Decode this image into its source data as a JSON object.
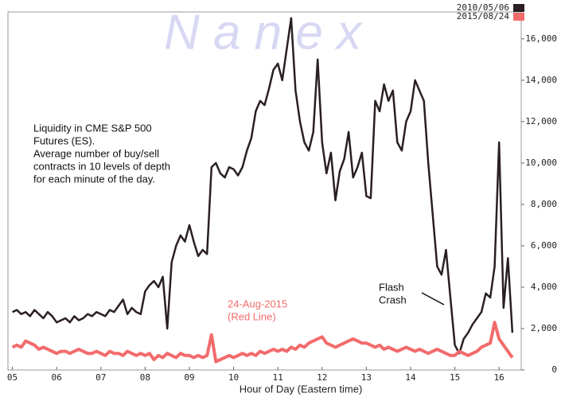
{
  "chart_data": {
    "type": "line",
    "watermark": "N a n e x",
    "annotation_lines": [
      "Liquidity in CME S&P 500",
      "Futures (ES).",
      "Average number of buy/sell",
      "contracts in 10 levels of depth",
      "for each minute of the day."
    ],
    "flash_crash_lines": [
      "Flash",
      "Crash"
    ],
    "red_note_lines": [
      "24-Aug-2015",
      "(Red Line)"
    ],
    "x_label": "Hour of Day (Eastern time)",
    "x": [
      5.0,
      5.1,
      5.2,
      5.3,
      5.4,
      5.5,
      5.6,
      5.7,
      5.8,
      5.9,
      6.0,
      6.1,
      6.2,
      6.3,
      6.4,
      6.5,
      6.6,
      6.7,
      6.8,
      6.9,
      7.0,
      7.1,
      7.2,
      7.3,
      7.4,
      7.5,
      7.6,
      7.7,
      7.8,
      7.9,
      8.0,
      8.1,
      8.2,
      8.3,
      8.4,
      8.5,
      8.6,
      8.7,
      8.8,
      8.9,
      9.0,
      9.1,
      9.2,
      9.3,
      9.4,
      9.5,
      9.6,
      9.7,
      9.8,
      9.9,
      10.0,
      10.1,
      10.2,
      10.3,
      10.4,
      10.5,
      10.6,
      10.7,
      10.8,
      10.9,
      11.0,
      11.1,
      11.2,
      11.3,
      11.4,
      11.5,
      11.6,
      11.7,
      11.8,
      11.9,
      12.0,
      12.1,
      12.2,
      12.3,
      12.4,
      12.5,
      12.6,
      12.7,
      12.8,
      12.9,
      13.0,
      13.1,
      13.2,
      13.3,
      13.4,
      13.5,
      13.6,
      13.7,
      13.8,
      13.9,
      14.0,
      14.1,
      14.2,
      14.3,
      14.4,
      14.5,
      14.6,
      14.7,
      14.8,
      14.9,
      15.0,
      15.1,
      15.2,
      15.3,
      15.4,
      15.5,
      15.6,
      15.7,
      15.8,
      15.9,
      16.0,
      16.1,
      16.2,
      16.3
    ],
    "series": [
      {
        "name": "2010/05/06",
        "color": "#2a1f22",
        "values": [
          2800,
          2900,
          2700,
          2800,
          2600,
          2900,
          2700,
          2500,
          2800,
          2600,
          2300,
          2400,
          2500,
          2300,
          2600,
          2400,
          2500,
          2700,
          2600,
          2800,
          2700,
          2600,
          2900,
          2800,
          3100,
          3400,
          2700,
          3000,
          2800,
          2700,
          3800,
          4100,
          4300,
          4000,
          4500,
          2000,
          5200,
          6000,
          6500,
          6200,
          7000,
          6200,
          5500,
          5800,
          5600,
          9800,
          10000,
          9500,
          9300,
          9800,
          9700,
          9400,
          9800,
          10600,
          11200,
          12500,
          13000,
          12800,
          13600,
          14500,
          14800,
          14000,
          15500,
          17000,
          13500,
          12000,
          11000,
          10600,
          11500,
          15000,
          11000,
          9500,
          10500,
          8200,
          9600,
          10200,
          11500,
          9300,
          9800,
          10500,
          8400,
          8300,
          13000,
          12500,
          13800,
          13000,
          13500,
          11000,
          10600,
          12000,
          12500,
          14000,
          13500,
          13000,
          10000,
          7500,
          5000,
          4600,
          5800,
          3500,
          1200,
          800,
          1500,
          1800,
          2200,
          2500,
          2800,
          3700,
          3500,
          5000,
          11000,
          3000,
          5400,
          1800
        ]
      },
      {
        "name": "2015/08/24",
        "color": "#f26b6b",
        "values": [
          1100,
          1200,
          1100,
          1400,
          1300,
          1200,
          1000,
          1100,
          1000,
          900,
          800,
          900,
          900,
          800,
          900,
          1000,
          900,
          800,
          800,
          900,
          800,
          700,
          900,
          800,
          800,
          700,
          900,
          800,
          700,
          800,
          700,
          800,
          500,
          700,
          600,
          800,
          700,
          600,
          800,
          700,
          700,
          600,
          700,
          600,
          700,
          1700,
          400,
          500,
          600,
          700,
          600,
          700,
          800,
          700,
          800,
          700,
          900,
          800,
          900,
          1000,
          900,
          1000,
          900,
          1100,
          1000,
          1200,
          1100,
          1300,
          1400,
          1500,
          1600,
          1300,
          1200,
          1100,
          1200,
          1300,
          1400,
          1500,
          1400,
          1300,
          1300,
          1200,
          1100,
          1200,
          1000,
          1100,
          1000,
          900,
          1000,
          1100,
          1000,
          900,
          1000,
          900,
          800,
          900,
          1000,
          900,
          800,
          700,
          700,
          900,
          800,
          700,
          800,
          900,
          1100,
          1200,
          1300,
          2300,
          1500,
          1200,
          900,
          600
        ]
      }
    ],
    "xlim": [
      4.9,
      16.5
    ],
    "xticks": [
      {
        "value": 5,
        "label": "05"
      },
      {
        "value": 6,
        "label": "06"
      },
      {
        "value": 7,
        "label": "07"
      },
      {
        "value": 8,
        "label": "08"
      },
      {
        "value": 9,
        "label": "09"
      },
      10,
      11,
      12,
      13,
      14,
      15,
      16
    ],
    "ylim": [
      0,
      17300
    ],
    "yticks": [
      0,
      {
        "value": 2000,
        "label": "2,000"
      },
      {
        "value": 4000,
        "label": "4,000"
      },
      {
        "value": 6000,
        "label": "6,000"
      },
      {
        "value": 8000,
        "label": "8,000"
      },
      {
        "value": 10000,
        "label": "10,000"
      },
      {
        "value": 12000,
        "label": "12,000"
      },
      {
        "value": 14000,
        "label": "14,000"
      },
      {
        "value": 16000,
        "label": "16,000"
      }
    ],
    "legend": "upper right"
  }
}
